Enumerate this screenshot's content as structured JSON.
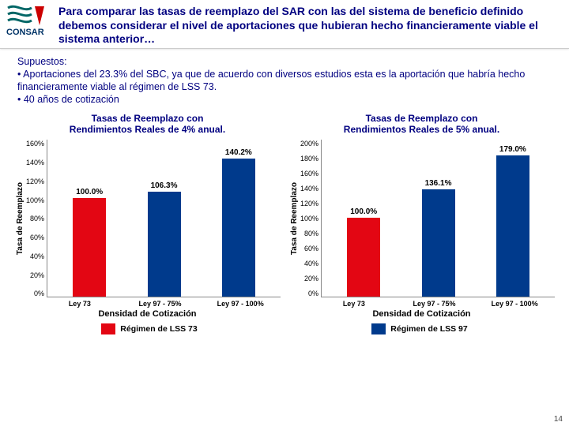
{
  "header": {
    "title": "Para comparar las tasas de reemplazo del SAR con las del sistema de beneficio definido debemos considerar el nivel de aportaciones que hubieran hecho financieramente viable el sistema anterior…",
    "logo_text": "CONSAR",
    "logo_colors": {
      "stripes": "#006666",
      "red": "#cc0000",
      "text": "#003366"
    }
  },
  "assumptions": {
    "heading": "Supuestos:",
    "bullets": [
      "Aportaciones del 23.3% del SBC, ya que de acuerdo con diversos estudios esta es la aportación que habría hecho financieramente viable al régimen de LSS 73.",
      "40 años de cotización"
    ]
  },
  "colors": {
    "red": "#e30613",
    "blue": "#003a8c",
    "navy_text": "#000080",
    "axis": "#888888"
  },
  "charts": [
    {
      "title_line1": "Tasas de Reemplazo con",
      "title_line2": "Rendimientos Reales de 4% anual.",
      "y_axis_label": "Tasa de Reemplazo",
      "x_axis_label": "Densidad de Cotización",
      "ylim": [
        0,
        160
      ],
      "ytick_step": 20,
      "bars": [
        {
          "x": "Ley 73",
          "value": 100.0,
          "label": "100.0%",
          "color": "#e30613"
        },
        {
          "x": "Ley 97 - 75%",
          "value": 106.3,
          "label": "106.3%",
          "color": "#003a8c"
        },
        {
          "x": "Ley 97 - 100%",
          "value": 140.2,
          "label": "140.2%",
          "color": "#003a8c"
        }
      ]
    },
    {
      "title_line1": "Tasas de Reemplazo con",
      "title_line2": "Rendimientos Reales de 5% anual.",
      "y_axis_label": "Tasa de Reemplazo",
      "x_axis_label": "Densidad de Cotización",
      "ylim": [
        0,
        200
      ],
      "ytick_step": 20,
      "bars": [
        {
          "x": "Ley 73",
          "value": 100.0,
          "label": "100.0%",
          "color": "#e30613"
        },
        {
          "x": "Ley 97 - 75%",
          "value": 136.1,
          "label": "136.1%",
          "color": "#003a8c"
        },
        {
          "x": "Ley 97 - 100%",
          "value": 179.0,
          "label": "179.0%",
          "color": "#003a8c"
        }
      ]
    }
  ],
  "legends": [
    {
      "swatch": "#e30613",
      "text": "Régimen de LSS 73"
    },
    {
      "swatch": "#003a8c",
      "text": "Régimen de LSS 97"
    }
  ],
  "page_number": "14"
}
